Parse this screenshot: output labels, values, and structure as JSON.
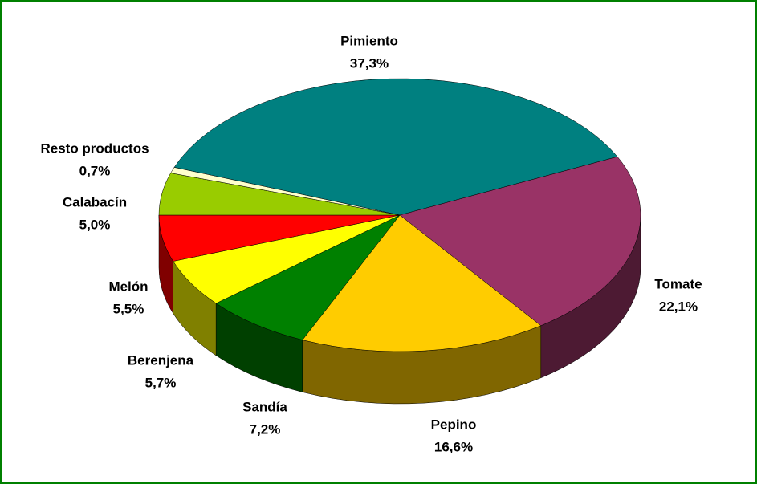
{
  "chart_data": {
    "type": "pie3d",
    "categories": [
      "Pimiento",
      "Tomate",
      "Pepino",
      "Sandía",
      "Berenjena",
      "Melón",
      "Calabacín",
      "Resto productos"
    ],
    "values": [
      37.3,
      22.1,
      16.6,
      7.2,
      5.7,
      5.5,
      5.0,
      0.7
    ],
    "value_labels": [
      "37,3%",
      "22,1%",
      "16,6%",
      "7,2%",
      "5,7%",
      "5,5%",
      "5,0%",
      "0,7%"
    ],
    "colors": [
      "#008080",
      "#993366",
      "#ffcc00",
      "#008000",
      "#ffff00",
      "#ff0000",
      "#99cc00",
      "#ffffcc"
    ]
  }
}
